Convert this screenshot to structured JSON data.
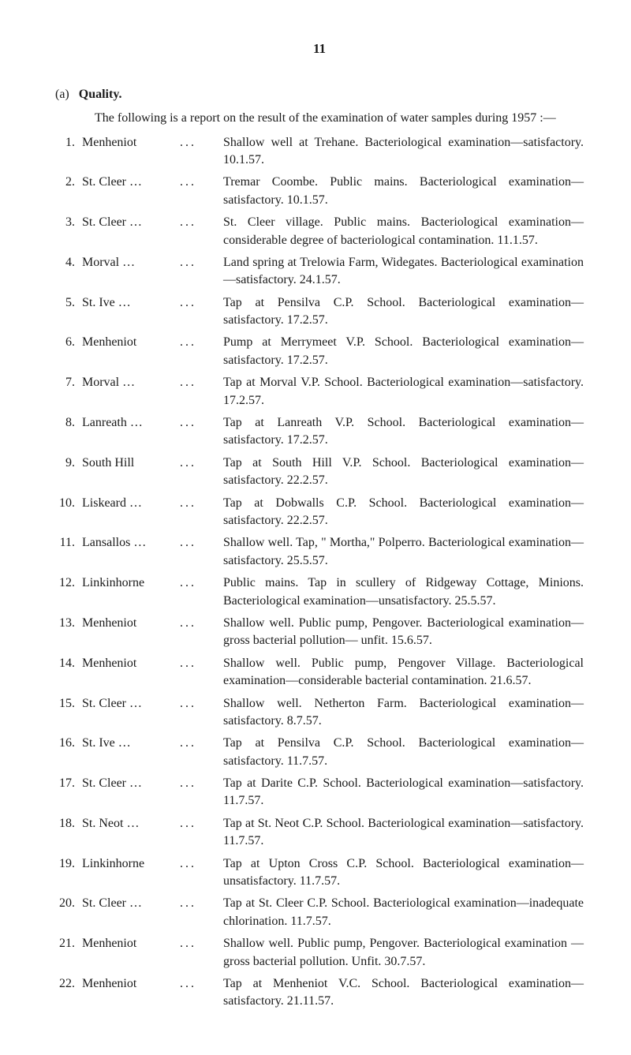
{
  "pageNumber": "11",
  "sectionLabel": "(a)",
  "sectionTitle": "Quality.",
  "introText": "The following is a report on the result of the examination of water samples during 1957 :—",
  "items": [
    {
      "num": "1.",
      "name": "Menheniot",
      "dots": "...",
      "desc": "Shallow well at Trehane. Bacteriological examination—satisfactory. 10.1.57."
    },
    {
      "num": "2.",
      "name": "St. Cleer …",
      "dots": "...",
      "desc": "Tremar Coombe. Public mains. Bacteriological examination—satisfactory. 10.1.57."
    },
    {
      "num": "3.",
      "name": "St. Cleer …",
      "dots": "...",
      "desc": "St. Cleer village. Public mains. Bacteriological examination—considerable degree of bacteriological contamination. 11.1.57."
    },
    {
      "num": "4.",
      "name": "Morval …",
      "dots": "...",
      "desc": "Land spring at Trelowia Farm, Widegates. Bacteriological examination—satisfactory. 24.1.57."
    },
    {
      "num": "5.",
      "name": "St. Ive …",
      "dots": "...",
      "desc": "Tap at Pensilva C.P. School. Bacteriological examination—satisfactory. 17.2.57."
    },
    {
      "num": "6.",
      "name": "Menheniot",
      "dots": "...",
      "desc": "Pump at Merrymeet V.P. School. Bacteriological examination—satisfactory. 17.2.57."
    },
    {
      "num": "7.",
      "name": "Morval …",
      "dots": "...",
      "desc": "Tap at Morval V.P. School. Bacteriological examination—satisfactory. 17.2.57."
    },
    {
      "num": "8.",
      "name": "Lanreath …",
      "dots": "...",
      "desc": "Tap at Lanreath V.P. School. Bacteriological examination—satisfactory. 17.2.57."
    },
    {
      "num": "9.",
      "name": "South Hill",
      "dots": "...",
      "desc": "Tap at South Hill V.P. School. Bacteriological examination—satisfactory. 22.2.57."
    },
    {
      "num": "10.",
      "name": "Liskeard …",
      "dots": "...",
      "desc": "Tap at Dobwalls C.P. School. Bacteriological examination—satisfactory. 22.2.57."
    },
    {
      "num": "11.",
      "name": "Lansallos …",
      "dots": "...",
      "desc": "Shallow well. Tap, \" Mortha,\" Polperro. Bacteriological examination—satisfactory. 25.5.57."
    },
    {
      "num": "12.",
      "name": "Linkinhorne",
      "dots": "...",
      "desc": "Public mains. Tap in scullery of Ridgeway Cottage, Minions. Bacteriological examination—unsatisfactory. 25.5.57."
    },
    {
      "num": "13.",
      "name": "Menheniot",
      "dots": "...",
      "desc": "Shallow well. Public pump, Pengover. Bacteriological examination—gross bacterial pollution— unfit. 15.6.57."
    },
    {
      "num": "14.",
      "name": "Menheniot",
      "dots": "...",
      "desc": "Shallow well. Public pump, Pengover Village. Bacteriological examination—considerable bacterial contamination. 21.6.57."
    },
    {
      "num": "15.",
      "name": "St. Cleer …",
      "dots": "...",
      "desc": "Shallow well. Netherton Farm. Bacteriological examination—satisfactory. 8.7.57."
    },
    {
      "num": "16.",
      "name": "St. Ive …",
      "dots": "...",
      "desc": "Tap at Pensilva C.P. School. Bacteriological examination—satisfactory. 11.7.57."
    },
    {
      "num": "17.",
      "name": "St. Cleer …",
      "dots": "...",
      "desc": "Tap at Darite C.P. School. Bacteriological examination—satisfactory. 11.7.57."
    },
    {
      "num": "18.",
      "name": "St. Neot …",
      "dots": "...",
      "desc": "Tap at St. Neot C.P. School. Bacteriological examination—satisfactory. 11.7.57."
    },
    {
      "num": "19.",
      "name": "Linkinhorne",
      "dots": "...",
      "desc": "Tap at Upton Cross C.P. School. Bacteriological examination—unsatisfactory. 11.7.57."
    },
    {
      "num": "20.",
      "name": "St. Cleer …",
      "dots": "...",
      "desc": "Tap at St. Cleer C.P. School. Bacteriological examination—inadequate chlorination. 11.7.57."
    },
    {
      "num": "21.",
      "name": "Menheniot",
      "dots": "...",
      "desc": "Shallow well. Public pump, Pengover. Bacteriological examination — gross bacterial pollution. Unfit. 30.7.57."
    },
    {
      "num": "22.",
      "name": "Menheniot",
      "dots": "...",
      "desc": "Tap at Menheniot V.C. School. Bacteriological examination—satisfactory. 21.11.57."
    }
  ]
}
